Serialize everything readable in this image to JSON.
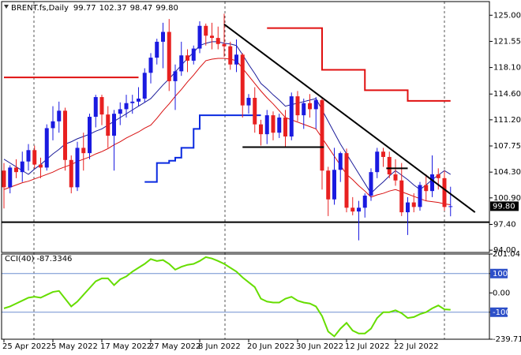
{
  "chart_data": [
    {
      "type": "candlestick",
      "title": "BRENT.fs,Daily",
      "last_price_label": "99.80",
      "categories": [
        "25 Apr 2022",
        null,
        null,
        null,
        null,
        null,
        null,
        null,
        "5 May 2022",
        null,
        null,
        null,
        null,
        null,
        null,
        null,
        "17 May 2022",
        null,
        null,
        null,
        null,
        null,
        null,
        null,
        "27 May 2022",
        null,
        null,
        null,
        null,
        null,
        null,
        null,
        "8 Jun 2022",
        null,
        null,
        null,
        null,
        null,
        null,
        null,
        "20 Jun 2022",
        null,
        null,
        null,
        null,
        null,
        null,
        null,
        "30 Jun 2022",
        null,
        null,
        null,
        null,
        null,
        null,
        null,
        "12 Jul 2022",
        null,
        null,
        null,
        null,
        null,
        null,
        null,
        "22 Jul 2022",
        null,
        null,
        null,
        null,
        null,
        null,
        null,
        null,
        null
      ],
      "open": [
        104.5,
        102.3,
        104.9,
        104.3,
        105.7,
        107.2,
        105.3,
        104.9,
        110.1,
        111.0,
        112.4,
        105.9,
        102.3,
        107.5,
        106.8,
        111.6,
        114.2,
        111.9,
        109.1,
        112.0,
        112.6,
        113.4,
        113.6,
        114.0,
        117.4,
        119.4,
        121.5,
        122.8,
        116.3,
        117.6,
        119.7,
        119.0,
        120.6,
        123.6,
        122.3,
        122.0,
        121.2,
        120.9,
        118.5,
        119.8,
        113.1,
        114.1,
        110.6,
        109.3,
        111.8,
        109.5,
        111.5,
        109.0,
        114.3,
        111.8,
        113.4,
        112.6,
        113.8,
        104.5,
        100.7,
        104.6,
        106.8,
        99.6,
        99.1,
        99.6,
        101.2,
        104.3,
        107.0,
        106.3,
        104.0,
        103.2,
        99.0,
        100.3,
        99.7,
        102.6,
        101.8,
        104.0,
        103.5,
        99.77
      ],
      "high": [
        105.5,
        105.2,
        106.0,
        107.0,
        108.0,
        107.8,
        106.2,
        110.6,
        113.0,
        113.6,
        112.8,
        106.5,
        108.3,
        109.5,
        112.0,
        114.5,
        114.5,
        113.0,
        112.5,
        113.5,
        114.5,
        114.5,
        115.5,
        118.0,
        120.0,
        121.9,
        124.0,
        124.5,
        118.5,
        121.5,
        120.5,
        121.0,
        124.2,
        123.9,
        124.0,
        123.5,
        125.2,
        121.5,
        121.8,
        120.0,
        114.6,
        115.5,
        111.2,
        112.5,
        112.3,
        112.0,
        112.5,
        114.8,
        115.0,
        114.0,
        114.6,
        114.2,
        114.2,
        105.0,
        107.5,
        107.0,
        107.4,
        101.0,
        100.5,
        101.5,
        104.8,
        107.5,
        107.5,
        107.0,
        106.0,
        105.5,
        101.0,
        101.5,
        103.0,
        104.0,
        106.5,
        104.8,
        104.5,
        102.37
      ],
      "low": [
        99.5,
        101.5,
        103.5,
        103.0,
        104.5,
        104.8,
        103.5,
        104.5,
        108.5,
        109.5,
        104.5,
        101.5,
        101.8,
        104.5,
        106.0,
        110.2,
        110.5,
        107.5,
        104.5,
        110.5,
        111.5,
        112.0,
        113.0,
        113.5,
        116.0,
        118.5,
        118.0,
        115.0,
        112.5,
        117.0,
        117.5,
        118.5,
        120.0,
        121.0,
        120.5,
        120.5,
        119.5,
        117.8,
        117.5,
        111.5,
        112.0,
        109.5,
        107.8,
        108.0,
        108.5,
        108.8,
        107.5,
        108.5,
        111.0,
        110.0,
        111.5,
        110.0,
        102.0,
        98.5,
        100.0,
        103.0,
        99.0,
        98.6,
        95.3,
        98.3,
        100.5,
        103.5,
        105.0,
        103.5,
        102.5,
        98.5,
        96.0,
        99.0,
        99.2,
        100.5,
        101.0,
        102.0,
        99.2,
        98.47
      ],
      "close": [
        102.3,
        104.9,
        104.3,
        105.7,
        107.2,
        105.3,
        104.9,
        110.1,
        111.0,
        112.4,
        105.9,
        102.3,
        107.5,
        106.8,
        111.6,
        114.2,
        111.9,
        109.1,
        112.0,
        112.6,
        113.4,
        113.6,
        114.0,
        117.4,
        119.4,
        121.5,
        122.8,
        116.3,
        117.6,
        119.7,
        119.0,
        120.6,
        123.6,
        122.3,
        122.0,
        121.2,
        120.9,
        118.5,
        119.8,
        113.1,
        114.1,
        110.6,
        109.3,
        111.8,
        109.5,
        111.5,
        109.0,
        114.3,
        111.8,
        113.4,
        112.6,
        113.8,
        104.5,
        100.7,
        104.6,
        106.8,
        99.6,
        99.1,
        99.6,
        101.2,
        104.3,
        107.0,
        106.3,
        104.0,
        103.2,
        99.0,
        100.3,
        99.7,
        102.6,
        101.8,
        104.0,
        103.5,
        99.7,
        99.8
      ],
      "up_color": "#1a1ae0",
      "down_color": "#e82020",
      "lines": [
        {
          "color": "#d81010",
          "style": "thin",
          "values": [
            102.0,
            102.3,
            102.6,
            102.9,
            103.1,
            103.4,
            103.7,
            104.0,
            104.3,
            104.7,
            105.0,
            105.3,
            105.7,
            106.0,
            106.3,
            106.7,
            107.0,
            107.4,
            107.9,
            108.3,
            108.8,
            109.2,
            109.6,
            110.1,
            110.5,
            111.4,
            112.4,
            113.3,
            114.3,
            115.2,
            116.2,
            117.1,
            118.1,
            119.0,
            119.2,
            119.3,
            119.3,
            119.2,
            119.0,
            118.0,
            117.0,
            116.0,
            115.0,
            114.1,
            113.3,
            112.4,
            111.5,
            111.2,
            110.9,
            110.6,
            110.3,
            110.0,
            108.8,
            107.6,
            106.4,
            105.2,
            104.0,
            103.3,
            102.5,
            101.8,
            101.0,
            101.3,
            101.5,
            101.8,
            102.0,
            101.7,
            101.4,
            101.1,
            100.8,
            100.5,
            100.4,
            100.3,
            100.1,
            100.0
          ]
        },
        {
          "color": "#1c1c9a",
          "style": "thin",
          "values": [
            106.0,
            105.5,
            105.0,
            104.5,
            104.0,
            104.7,
            105.3,
            106.0,
            106.7,
            107.3,
            108.0,
            108.3,
            108.7,
            109.0,
            109.3,
            109.7,
            110.0,
            110.5,
            111.0,
            111.5,
            112.0,
            112.5,
            113.0,
            113.5,
            114.0,
            114.9,
            115.8,
            116.6,
            117.5,
            118.4,
            119.3,
            120.1,
            121.0,
            121.3,
            121.5,
            121.5,
            121.3,
            121.2,
            121.0,
            119.8,
            118.5,
            117.3,
            116.0,
            115.3,
            114.5,
            113.8,
            113.0,
            113.2,
            113.4,
            113.6,
            113.8,
            114.0,
            112.5,
            111.0,
            109.5,
            108.0,
            106.7,
            105.4,
            104.1,
            102.8,
            101.5,
            102.3,
            103.0,
            103.8,
            104.5,
            103.9,
            103.3,
            102.6,
            102.0,
            102.6,
            103.3,
            103.9,
            104.5,
            104.0
          ]
        },
        {
          "color": "#e01010",
          "style": "thick",
          "step": true,
          "values": [
            116.8,
            116.8,
            116.8,
            116.8,
            116.8,
            116.8,
            116.8,
            116.8,
            116.8,
            116.8,
            116.8,
            116.8,
            116.8,
            116.8,
            116.8,
            116.8,
            116.8,
            116.8,
            116.8,
            116.8,
            116.8,
            116.8,
            116.8,
            null,
            null,
            null,
            null,
            null,
            null,
            null,
            null,
            null,
            null,
            null,
            null,
            null,
            null,
            null,
            null,
            null,
            null,
            null,
            null,
            123.3,
            123.3,
            123.3,
            123.3,
            123.3,
            123.3,
            123.3,
            123.3,
            123.3,
            117.8,
            117.8,
            117.8,
            117.8,
            117.8,
            117.8,
            117.8,
            115.1,
            115.1,
            115.1,
            115.1,
            115.1,
            115.1,
            115.1,
            113.7,
            113.7,
            113.7,
            113.7,
            113.7,
            113.7,
            113.7,
            113.7
          ]
        },
        {
          "color": "#0a2ae0",
          "style": "thick",
          "step": true,
          "values": [
            null,
            null,
            null,
            null,
            null,
            null,
            null,
            null,
            null,
            null,
            null,
            null,
            null,
            null,
            null,
            null,
            null,
            null,
            null,
            null,
            null,
            null,
            null,
            103,
            103,
            105.5,
            105.5,
            105.8,
            106.2,
            107.5,
            107.5,
            110,
            111.8,
            111.8,
            111.8,
            111.8,
            111.8,
            111.8,
            111.8,
            111.8,
            111.8,
            111.8,
            111.8,
            null,
            null,
            null,
            null,
            null,
            null,
            null,
            null,
            null,
            null,
            null,
            null,
            null,
            null,
            null,
            null,
            null,
            null,
            null,
            null,
            null,
            null,
            null,
            null,
            null,
            null,
            null,
            null,
            null,
            null,
            null
          ]
        }
      ],
      "trendlines": [
        {
          "x": [
            36,
            77
          ],
          "values": [
            123.8,
            99.0
          ]
        },
        {
          "x": [
            39,
            52.3
          ],
          "values": [
            107.6,
            107.6
          ]
        },
        {
          "x": [
            62.5,
            66
          ],
          "values": [
            104.8,
            104.8
          ]
        }
      ],
      "hlines": [
        97.7
      ],
      "ylim": [
        93.7,
        126.8
      ],
      "yticks": [
        {
          "value": 125,
          "label": "125.00"
        },
        {
          "value": 121.55,
          "label": "121.55"
        },
        {
          "value": 118.1,
          "label": "118.10"
        },
        {
          "value": 114.6,
          "label": "114.60"
        },
        {
          "value": 111.2,
          "label": "111.20"
        },
        {
          "value": 107.75,
          "label": "107.75"
        },
        {
          "value": 104.3,
          "label": "104.30"
        },
        {
          "value": 100.9,
          "label": "100.90"
        },
        {
          "value": 97.4,
          "label": "97.40"
        },
        {
          "value": 94,
          "label": "94.00"
        }
      ]
    },
    {
      "type": "line",
      "title": "CCI(40)",
      "color": "#66dd00",
      "values": [
        -80,
        -70,
        -55,
        -40,
        -25,
        -20,
        -25,
        -10,
        5,
        10,
        -30,
        -70,
        -45,
        -10,
        25,
        60,
        75,
        75,
        40,
        70,
        85,
        110,
        130,
        150,
        175,
        165,
        170,
        150,
        120,
        135,
        145,
        150,
        165,
        185,
        178,
        165,
        150,
        130,
        110,
        80,
        55,
        30,
        -30,
        -45,
        -50,
        -50,
        -30,
        -20,
        -40,
        -50,
        -55,
        -70,
        -120,
        -200,
        -225,
        -185,
        -155,
        -195,
        -210,
        -210,
        -185,
        -130,
        -100,
        -100,
        -90,
        -105,
        -130,
        -125,
        -110,
        -100,
        -80,
        -65,
        -85,
        -87.3346
      ],
      "levels": [
        100,
        -100
      ],
      "ylim": [
        -239.713,
        201.04
      ],
      "yticks": [
        201.04,
        100,
        {
          "value": 0,
          "label": "0.00"
        },
        -100,
        -239.713
      ]
    }
  ]
}
